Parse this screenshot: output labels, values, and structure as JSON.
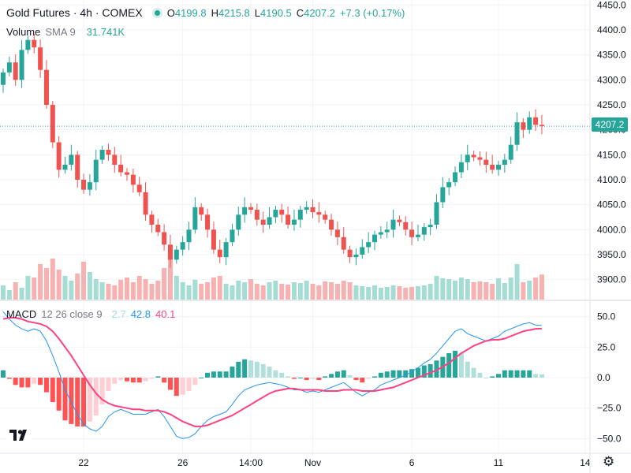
{
  "header": {
    "symbol_title": "Gold Futures · 4h · COMEX",
    "open_label": "O",
    "open_value": "4199.8",
    "high_label": "H",
    "high_value": "4215.8",
    "low_label": "L",
    "low_value": "4190.5",
    "close_label": "C",
    "close_value": "4207.2",
    "change": "+7.3 (+0.17%)"
  },
  "volume_legend": {
    "name": "Volume",
    "ma": "SMA 9",
    "value": "31.741K"
  },
  "macd_legend": {
    "name": "MACD",
    "params": "12 26 close 9",
    "hist": "2.7",
    "macd": "42.8",
    "signal": "40.1"
  },
  "current_price_label": "4207.2",
  "colors": {
    "up": "#26a69a",
    "down": "#ef5350",
    "macd_line": "#2196f3",
    "signal_line": "#ff4081"
  },
  "icons": {
    "logo": "tradingview-logo-icon",
    "settings": "gear-icon",
    "market_status": "market-open-dot-icon"
  },
  "chart_data": {
    "type": "candlestick",
    "title": "Gold Futures · 4h · COMEX",
    "price_axis": {
      "ylim": [
        3860,
        4460
      ],
      "ticks": [
        3900,
        3950,
        4000,
        4050,
        4100,
        4150,
        4200,
        4250,
        4300,
        4350,
        4400,
        4450
      ],
      "tick_labels": [
        "3900.0",
        "3950.0",
        "4000.0",
        "4050.0",
        "4100.0",
        "4150.0",
        "4200.0",
        "4250.0",
        "4300.0",
        "4350.0",
        "4400.0",
        "4450.0"
      ]
    },
    "x_axis": {
      "labels": [
        {
          "text": "22",
          "index": 13
        },
        {
          "text": "26",
          "index": 29
        },
        {
          "text": "14:00",
          "index": 40
        },
        {
          "text": "Nov",
          "index": 50
        },
        {
          "text": "6",
          "index": 66
        },
        {
          "text": "11",
          "index": 80
        },
        {
          "text": "14",
          "index": 94
        }
      ]
    },
    "candles_close": [
      4315,
      4335,
      4300,
      4360,
      4380,
      4365,
      4320,
      4250,
      4175,
      4120,
      4130,
      4150,
      4100,
      4080,
      4095,
      4140,
      4160,
      4150,
      4130,
      4115,
      4110,
      4090,
      4075,
      4030,
      4010,
      3995,
      3970,
      3940,
      3960,
      3975,
      4000,
      4045,
      4030,
      4000,
      3960,
      3945,
      3975,
      4000,
      4030,
      4045,
      4040,
      4020,
      4010,
      4025,
      4040,
      4030,
      4010,
      4020,
      4040,
      4045,
      4035,
      4030,
      4020,
      4000,
      3985,
      3960,
      3945,
      3950,
      3965,
      3975,
      3990,
      3995,
      4000,
      4020,
      4015,
      4000,
      3985,
      3990,
      4005,
      4010,
      4055,
      4085,
      4095,
      4115,
      4135,
      4150,
      4145,
      4140,
      4130,
      4120,
      4130,
      4140,
      4170,
      4215,
      4200,
      4225,
      4210,
      4207.2
    ],
    "candles_open_first": 4290,
    "volume": {
      "ylim": [
        0,
        100000
      ],
      "values": [
        18000,
        12000,
        22000,
        15000,
        30000,
        28000,
        45000,
        40000,
        52000,
        38000,
        30000,
        24000,
        33000,
        48000,
        35000,
        26000,
        22000,
        20000,
        18000,
        25000,
        28000,
        22000,
        30000,
        26000,
        20000,
        24000,
        40000,
        55000,
        30000,
        22000,
        18000,
        25000,
        20000,
        22000,
        28000,
        30000,
        20000,
        18000,
        24000,
        22000,
        26000,
        20000,
        18000,
        22000,
        24000,
        20000,
        19000,
        22000,
        21000,
        24000,
        20000,
        18000,
        23000,
        22000,
        20000,
        24000,
        22000,
        18000,
        17000,
        16000,
        18000,
        15000,
        16000,
        18000,
        17000,
        15000,
        16000,
        17000,
        18000,
        20000,
        30000,
        27000,
        26000,
        24000,
        28000,
        26000,
        22000,
        23000,
        22000,
        20000,
        27000,
        21000,
        28000,
        45000,
        22000,
        24000,
        28000,
        31741
      ]
    },
    "macd": {
      "ylim": [
        -62,
        62
      ],
      "ticks": [
        50,
        25,
        0,
        -25,
        -50
      ],
      "tick_labels": [
        "50.0",
        "25.0",
        "0.0",
        "−25.0",
        "−50.0"
      ],
      "macd_line": [
        54,
        48,
        43,
        40,
        38,
        40,
        38,
        30,
        18,
        5,
        -10,
        -20,
        -30,
        -38,
        -42,
        -44,
        -40,
        -32,
        -28,
        -26,
        -28,
        -30,
        -30,
        -30,
        -28,
        -26,
        -32,
        -40,
        -48,
        -50,
        -49,
        -46,
        -40,
        -35,
        -32,
        -30,
        -28,
        -22,
        -15,
        -10,
        -8,
        -6,
        -5,
        -4,
        -5,
        -6,
        -8,
        -10,
        -10,
        -12,
        -11,
        -12,
        -10,
        -8,
        -6,
        -4,
        -8,
        -12,
        -15,
        -12,
        -10,
        -6,
        -4,
        -2,
        0,
        2,
        5,
        8,
        12,
        15,
        20,
        26,
        32,
        38,
        40,
        36,
        34,
        32,
        30,
        32,
        34,
        38,
        40,
        42,
        44,
        45,
        43,
        42.8
      ],
      "signal_line": [
        48,
        49,
        49,
        48,
        46,
        45,
        44,
        42,
        38,
        32,
        25,
        18,
        10,
        2,
        -6,
        -13,
        -18,
        -21,
        -23,
        -24,
        -25,
        -26,
        -26,
        -27,
        -27,
        -27,
        -28,
        -30,
        -33,
        -36,
        -38,
        -40,
        -40,
        -39,
        -37,
        -35,
        -33,
        -31,
        -28,
        -25,
        -22,
        -19,
        -16,
        -13,
        -11,
        -10,
        -9,
        -9,
        -10,
        -10,
        -10,
        -10,
        -11,
        -11,
        -11,
        -10,
        -10,
        -10,
        -11,
        -11,
        -11,
        -10,
        -9,
        -8,
        -6,
        -4,
        -2,
        0,
        2,
        4,
        6,
        9,
        12,
        16,
        20,
        23,
        26,
        28,
        30,
        31,
        31,
        32,
        34,
        36,
        38,
        39,
        40,
        40.1
      ],
      "histogram": [
        6,
        -1,
        -6,
        -8,
        -8,
        -5,
        -6,
        -12,
        -20,
        -27,
        -35,
        -38,
        -40,
        -40,
        -36,
        -31,
        -22,
        -11,
        -5,
        -2,
        -3,
        -4,
        -4,
        -3,
        -1,
        1,
        -4,
        -10,
        -15,
        -14,
        -11,
        -6,
        0,
        4,
        5,
        5,
        5,
        9,
        13,
        15,
        14,
        13,
        11,
        9,
        6,
        4,
        1,
        -1,
        0,
        -2,
        -1,
        -2,
        1,
        3,
        5,
        6,
        2,
        -2,
        -4,
        -1,
        1,
        4,
        5,
        6,
        6,
        6,
        7,
        8,
        10,
        11,
        14,
        17,
        20,
        22,
        20,
        13,
        8,
        4,
        0,
        1,
        3,
        6,
        6,
        6,
        6,
        6,
        3,
        2.7
      ]
    }
  }
}
